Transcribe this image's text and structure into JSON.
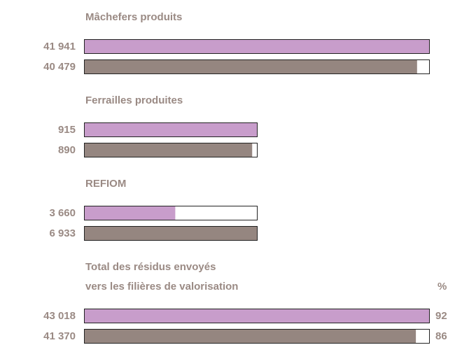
{
  "chart_data": {
    "type": "bar",
    "colors": [
      "#c89dcb",
      "#958680"
    ],
    "groups": [
      {
        "title": "Mâchefers produits",
        "values": [
          41941,
          40479
        ],
        "value_labels": [
          "41 941",
          "40 479"
        ]
      },
      {
        "title": "Ferrailles produites",
        "values": [
          915,
          890
        ],
        "value_labels": [
          "915",
          "890"
        ]
      },
      {
        "title": "REFIOM",
        "values": [
          3660,
          6933
        ],
        "value_labels": [
          "3 660",
          "6 933"
        ]
      },
      {
        "title": [
          "Total des résidus envoyés",
          "vers les filières de valorisation"
        ],
        "values": [
          43018,
          41370
        ],
        "value_labels": [
          "43 018",
          "41 370"
        ],
        "percent_label": "%",
        "percents": [
          92,
          86
        ]
      }
    ]
  }
}
